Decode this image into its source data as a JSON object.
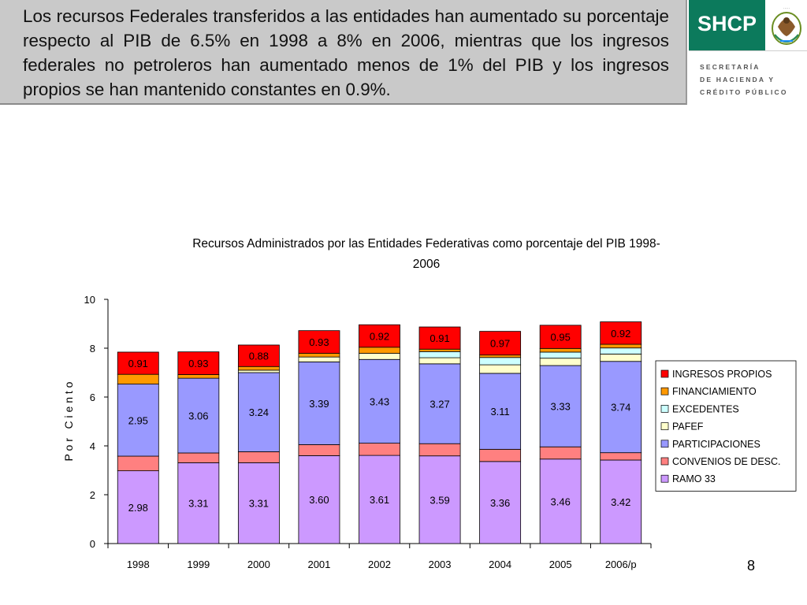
{
  "header": {
    "text": "Los recursos Federales transferidos a las entidades han aumentado su porcentaje respecto al PIB de 6.5% en 1998 a 8% en 2006, mientras que los ingresos federales no petroleros han aumentado menos de 1% del PIB y los ingresos propios se han mantenido constantes en 0.9%."
  },
  "logo": {
    "acronym": "SHCP",
    "line1": "SECRETARÍA",
    "line2": "DE HACIENDA Y",
    "line3": "CRÉDITO PÚBLICO",
    "brand_color": "#0c7a5c"
  },
  "page_number": "8",
  "chart_data": {
    "type": "bar",
    "stacked": true,
    "title_line1": "Recursos Administrados por las Entidades Federativas como porcentaje del PIB 1998-",
    "title_line2": "2006",
    "ylabel": "P o r   C i e n t o",
    "xlabel": "",
    "ylim": [
      0,
      10
    ],
    "yticks": [
      0,
      2,
      4,
      6,
      8,
      10
    ],
    "categories": [
      "1998",
      "1999",
      "2000",
      "2001",
      "2002",
      "2003",
      "2004",
      "2005",
      "2006/p"
    ],
    "legend_position": "right",
    "series": [
      {
        "name": "RAMO 33",
        "color": "#cc99ff",
        "values": [
          2.98,
          3.31,
          3.31,
          3.6,
          3.61,
          3.59,
          3.36,
          3.46,
          3.42
        ],
        "labels": [
          "2.98",
          "3.31",
          "3.31",
          "3.60",
          "3.61",
          "3.59",
          "3.36",
          "3.46",
          "3.42"
        ]
      },
      {
        "name": "CONVENIOS DE DESC.",
        "color": "#ff8080",
        "values": [
          0.6,
          0.4,
          0.45,
          0.45,
          0.5,
          0.5,
          0.5,
          0.5,
          0.3
        ],
        "labels": []
      },
      {
        "name": "PARTICIPACIONES",
        "color": "#9999ff",
        "values": [
          2.95,
          3.06,
          3.24,
          3.39,
          3.43,
          3.27,
          3.11,
          3.33,
          3.74
        ],
        "labels": [
          "2.95",
          "3.06",
          "3.24",
          "3.39",
          "3.43",
          "3.27",
          "3.11",
          "3.33",
          "3.74"
        ]
      },
      {
        "name": "PAFEF",
        "color": "#ffffcc",
        "values": [
          0,
          0,
          0.1,
          0.2,
          0.25,
          0.25,
          0.35,
          0.3,
          0.3
        ],
        "labels": []
      },
      {
        "name": "EXCEDENTES",
        "color": "#ccffff",
        "values": [
          0,
          0,
          0,
          0,
          0,
          0.25,
          0.3,
          0.25,
          0.25
        ],
        "labels": []
      },
      {
        "name": "FINANCIAMIENTO",
        "color": "#ff9900",
        "values": [
          0.4,
          0.15,
          0.15,
          0.15,
          0.25,
          0.1,
          0.1,
          0.15,
          0.15
        ],
        "labels": []
      },
      {
        "name": "INGRESOS PROPIOS",
        "color": "#ff0000",
        "values": [
          0.91,
          0.93,
          0.88,
          0.93,
          0.92,
          0.91,
          0.97,
          0.95,
          0.92
        ],
        "labels": [
          "0.91",
          "0.93",
          "0.88",
          "0.93",
          "0.92",
          "0.91",
          "0.97",
          "0.95",
          "0.92"
        ]
      }
    ]
  }
}
